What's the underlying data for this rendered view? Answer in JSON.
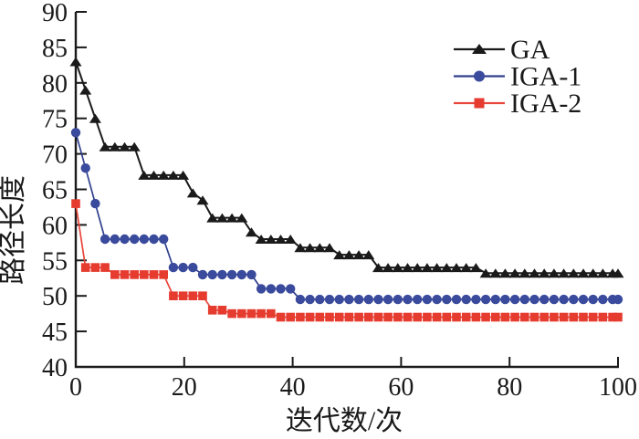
{
  "figure": {
    "background": "#ffffff"
  },
  "chart_data": {
    "type": "line",
    "title": "",
    "xlabel": "迭代数/次",
    "ylabel": "路径长度",
    "xlim": [
      0,
      100
    ],
    "ylim": [
      40,
      90
    ],
    "xticks": [
      0,
      20,
      40,
      60,
      80,
      100
    ],
    "yticks": [
      40,
      45,
      50,
      55,
      60,
      65,
      70,
      75,
      80,
      85,
      90
    ],
    "grid": false,
    "legend_position": "upper-right",
    "axis_color": "#1a1a1a",
    "series": [
      {
        "name": "GA",
        "marker": "triangle",
        "color": "#1a1a1a",
        "line_color": "#1a1a1a",
        "final_value": 53.2,
        "points": [
          [
            0,
            83
          ],
          [
            1.8,
            79
          ],
          [
            3.6,
            75
          ],
          [
            5.4,
            71
          ],
          [
            7.2,
            71
          ],
          [
            9,
            71
          ],
          [
            10.8,
            71
          ],
          [
            12.6,
            67
          ],
          [
            14.4,
            67
          ],
          [
            16.2,
            67
          ],
          [
            18,
            67
          ],
          [
            19.8,
            67
          ],
          [
            21.6,
            64.5
          ],
          [
            23.4,
            63.5
          ],
          [
            25.2,
            61
          ],
          [
            27,
            61
          ],
          [
            28.8,
            61
          ],
          [
            30.6,
            61
          ],
          [
            32.4,
            59
          ],
          [
            34.2,
            58
          ],
          [
            36,
            58
          ],
          [
            37.8,
            58
          ],
          [
            39.6,
            58
          ],
          [
            41.4,
            56.8
          ],
          [
            43.2,
            56.8
          ],
          [
            45,
            56.8
          ],
          [
            46.8,
            56.8
          ],
          [
            48.6,
            55.8
          ],
          [
            50.4,
            55.8
          ],
          [
            52.2,
            55.8
          ],
          [
            54,
            55.8
          ],
          [
            55.8,
            54
          ],
          [
            57.6,
            54
          ],
          [
            59.4,
            54
          ],
          [
            61.2,
            54
          ],
          [
            63,
            54
          ],
          [
            64.8,
            54
          ],
          [
            66.6,
            54
          ],
          [
            68.4,
            54
          ],
          [
            70.2,
            54
          ],
          [
            72,
            54
          ],
          [
            73.8,
            54
          ],
          [
            75.6,
            53.2
          ],
          [
            77.4,
            53.2
          ],
          [
            79.2,
            53.2
          ],
          [
            81,
            53.2
          ],
          [
            82.8,
            53.2
          ],
          [
            84.6,
            53.2
          ],
          [
            86.4,
            53.2
          ],
          [
            88.2,
            53.2
          ],
          [
            90,
            53.2
          ],
          [
            91.8,
            53.2
          ],
          [
            93.6,
            53.2
          ],
          [
            95.4,
            53.2
          ],
          [
            97.2,
            53.2
          ],
          [
            99,
            53.2
          ],
          [
            100,
            53.2
          ]
        ]
      },
      {
        "name": "IGA-1",
        "marker": "circle",
        "color": "#3a4a9c",
        "line_color": "#31408f",
        "final_value": 49.5,
        "points": [
          [
            0,
            73
          ],
          [
            1.8,
            68
          ],
          [
            3.6,
            63
          ],
          [
            5.4,
            58
          ],
          [
            7.2,
            58
          ],
          [
            9,
            58
          ],
          [
            10.8,
            58
          ],
          [
            12.6,
            58
          ],
          [
            14.4,
            58
          ],
          [
            16.2,
            58
          ],
          [
            18,
            54
          ],
          [
            19.8,
            54
          ],
          [
            21.6,
            54
          ],
          [
            23.4,
            53
          ],
          [
            25.2,
            53
          ],
          [
            27,
            53
          ],
          [
            28.8,
            53
          ],
          [
            30.6,
            53
          ],
          [
            32.4,
            53
          ],
          [
            34.2,
            51
          ],
          [
            36,
            51
          ],
          [
            37.8,
            51
          ],
          [
            39.6,
            51
          ],
          [
            41.4,
            49.5
          ],
          [
            43.2,
            49.5
          ],
          [
            45,
            49.5
          ],
          [
            46.8,
            49.5
          ],
          [
            48.6,
            49.5
          ],
          [
            50.4,
            49.5
          ],
          [
            52.2,
            49.5
          ],
          [
            54,
            49.5
          ],
          [
            55.8,
            49.5
          ],
          [
            57.6,
            49.5
          ],
          [
            59.4,
            49.5
          ],
          [
            61.2,
            49.5
          ],
          [
            63,
            49.5
          ],
          [
            64.8,
            49.5
          ],
          [
            66.6,
            49.5
          ],
          [
            68.4,
            49.5
          ],
          [
            70.2,
            49.5
          ],
          [
            72,
            49.5
          ],
          [
            73.8,
            49.5
          ],
          [
            75.6,
            49.5
          ],
          [
            77.4,
            49.5
          ],
          [
            79.2,
            49.5
          ],
          [
            81,
            49.5
          ],
          [
            82.8,
            49.5
          ],
          [
            84.6,
            49.5
          ],
          [
            86.4,
            49.5
          ],
          [
            88.2,
            49.5
          ],
          [
            90,
            49.5
          ],
          [
            91.8,
            49.5
          ],
          [
            93.6,
            49.5
          ],
          [
            95.4,
            49.5
          ],
          [
            97.2,
            49.5
          ],
          [
            99,
            49.5
          ],
          [
            100,
            49.5
          ]
        ]
      },
      {
        "name": "IGA-2",
        "marker": "square",
        "color": "#e63c30",
        "line_color": "#e8453b",
        "final_value": 47,
        "points": [
          [
            0,
            63
          ],
          [
            1.8,
            54
          ],
          [
            3.6,
            54
          ],
          [
            5.4,
            54
          ],
          [
            7.2,
            53
          ],
          [
            9,
            53
          ],
          [
            10.8,
            53
          ],
          [
            12.6,
            53
          ],
          [
            14.4,
            53
          ],
          [
            16.2,
            53
          ],
          [
            18,
            50
          ],
          [
            19.8,
            50
          ],
          [
            21.6,
            50
          ],
          [
            23.4,
            50
          ],
          [
            25.2,
            48
          ],
          [
            27,
            48
          ],
          [
            28.8,
            47.5
          ],
          [
            30.6,
            47.5
          ],
          [
            32.4,
            47.5
          ],
          [
            34.2,
            47.5
          ],
          [
            36,
            47.5
          ],
          [
            37.8,
            47
          ],
          [
            39.6,
            47
          ],
          [
            41.4,
            47
          ],
          [
            43.2,
            47
          ],
          [
            45,
            47
          ],
          [
            46.8,
            47
          ],
          [
            48.6,
            47
          ],
          [
            50.4,
            47
          ],
          [
            52.2,
            47
          ],
          [
            54,
            47
          ],
          [
            55.8,
            47
          ],
          [
            57.6,
            47
          ],
          [
            59.4,
            47
          ],
          [
            61.2,
            47
          ],
          [
            63,
            47
          ],
          [
            64.8,
            47
          ],
          [
            66.6,
            47
          ],
          [
            68.4,
            47
          ],
          [
            70.2,
            47
          ],
          [
            72,
            47
          ],
          [
            73.8,
            47
          ],
          [
            75.6,
            47
          ],
          [
            77.4,
            47
          ],
          [
            79.2,
            47
          ],
          [
            81,
            47
          ],
          [
            82.8,
            47
          ],
          [
            84.6,
            47
          ],
          [
            86.4,
            47
          ],
          [
            88.2,
            47
          ],
          [
            90,
            47
          ],
          [
            91.8,
            47
          ],
          [
            93.6,
            47
          ],
          [
            95.4,
            47
          ],
          [
            97.2,
            47
          ],
          [
            99,
            47
          ],
          [
            100,
            47
          ]
        ]
      }
    ]
  }
}
